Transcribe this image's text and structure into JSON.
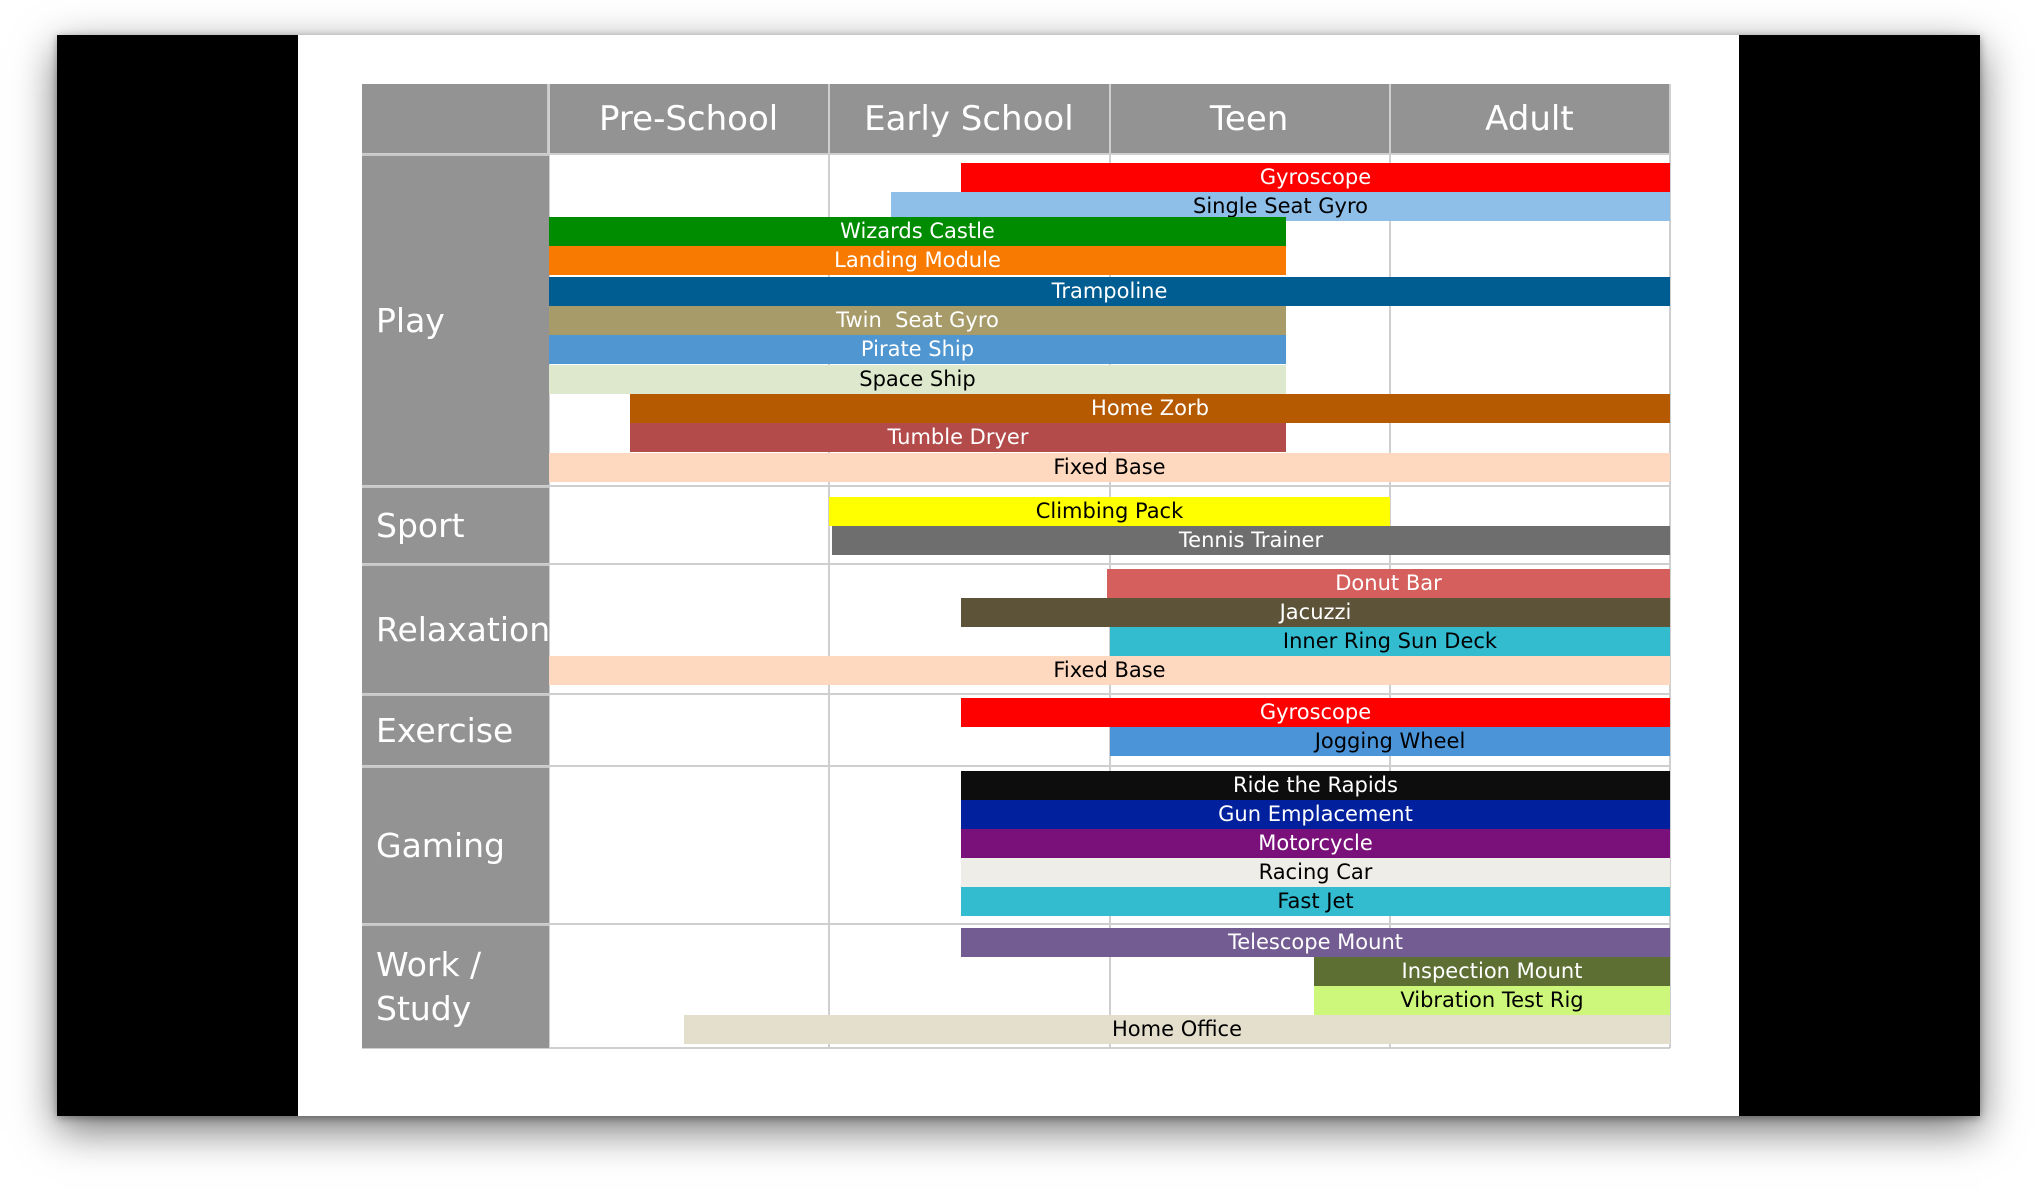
{
  "columns": [
    "Pre-School",
    "Early School",
    "Teen",
    "Adult"
  ],
  "colors": {
    "header_bg": "#939393",
    "grid_line": "#cfcfcf"
  },
  "chart_data": {
    "type": "gantt",
    "x_categories": [
      "Pre-School",
      "Early School",
      "Teen",
      "Adult"
    ],
    "groups": [
      {
        "label": "Play",
        "bars": [
          {
            "label": "Gyroscope",
            "start": 1.47,
            "end": 4.0,
            "color": "#fe0000",
            "text_color": "#ffffff"
          },
          {
            "label": "Single Seat Gyro",
            "start": 1.22,
            "end": 4.0,
            "color": "#8ebfe9",
            "text_color": "#000000"
          },
          {
            "label": "Wizards Castle",
            "start": 0.0,
            "end": 2.63,
            "color": "#008c00",
            "text_color": "#ffffff"
          },
          {
            "label": "Landing Module",
            "start": 0.0,
            "end": 2.63,
            "color": "#f97a00",
            "text_color": "#ffffff"
          },
          {
            "label": "Trampoline",
            "start": 0.0,
            "end": 4.0,
            "color": "#005d92",
            "text_color": "#ffffff"
          },
          {
            "label": "Twin  Seat Gyro",
            "start": 0.0,
            "end": 2.63,
            "color": "#a69b69",
            "text_color": "#ffffff"
          },
          {
            "label": "Pirate Ship",
            "start": 0.0,
            "end": 2.63,
            "color": "#5096d0",
            "text_color": "#ffffff"
          },
          {
            "label": "Space Ship",
            "start": 0.0,
            "end": 2.63,
            "color": "#dde8cc",
            "text_color": "#000000"
          },
          {
            "label": "Home Zorb",
            "start": 0.29,
            "end": 4.0,
            "color": "#b55a00",
            "text_color": "#ffffff"
          },
          {
            "label": "Tumble Dryer",
            "start": 0.29,
            "end": 2.63,
            "color": "#b34b4b",
            "text_color": "#ffffff"
          },
          {
            "label": "Fixed Base",
            "start": 0.0,
            "end": 4.0,
            "color": "#ffd9bf",
            "text_color": "#000000"
          }
        ]
      },
      {
        "label": "Sport",
        "bars": [
          {
            "label": "Climbing Pack",
            "start": 1.0,
            "end": 3.0,
            "color": "#ffff00",
            "text_color": "#000000"
          },
          {
            "label": "Tennis Trainer",
            "start": 1.01,
            "end": 4.0,
            "color": "#6e6e6e",
            "text_color": "#ffffff"
          }
        ]
      },
      {
        "label": "Relaxation",
        "bars": [
          {
            "label": "Donut Bar",
            "start": 1.99,
            "end": 4.0,
            "color": "#d45f5c",
            "text_color": "#ffffff"
          },
          {
            "label": "Jacuzzi",
            "start": 1.47,
            "end": 4.0,
            "color": "#5c5339",
            "text_color": "#ffffff"
          },
          {
            "label": "Inner Ring Sun Deck",
            "start": 2.0,
            "end": 4.0,
            "color": "#33bbd0",
            "text_color": "#000000"
          },
          {
            "label": "Fixed Base",
            "start": 0.0,
            "end": 4.0,
            "color": "#ffd9bf",
            "text_color": "#000000"
          }
        ]
      },
      {
        "label": "Exercise",
        "bars": [
          {
            "label": "Gyroscope",
            "start": 1.47,
            "end": 4.0,
            "color": "#fe0000",
            "text_color": "#ffffff"
          },
          {
            "label": "Jogging Wheel",
            "start": 2.0,
            "end": 4.0,
            "color": "#4c94d8",
            "text_color": "#000000"
          }
        ]
      },
      {
        "label": "Gaming",
        "bars": [
          {
            "label": "Ride the Rapids",
            "start": 1.47,
            "end": 4.0,
            "color": "#0d0d0d",
            "text_color": "#ffffff"
          },
          {
            "label": "Gun Emplacement",
            "start": 1.47,
            "end": 4.0,
            "color": "#00209e",
            "text_color": "#ffffff"
          },
          {
            "label": "Motorcycle",
            "start": 1.47,
            "end": 4.0,
            "color": "#7a117a",
            "text_color": "#ffffff"
          },
          {
            "label": "Racing Car",
            "start": 1.47,
            "end": 4.0,
            "color": "#efede7",
            "text_color": "#000000"
          },
          {
            "label": "Fast Jet",
            "start": 1.47,
            "end": 4.0,
            "color": "#33bbd0",
            "text_color": "#000000"
          }
        ]
      },
      {
        "label": "Work /\nStudy",
        "bars": [
          {
            "label": "Telescope Mount",
            "start": 1.47,
            "end": 4.0,
            "color": "#735c92",
            "text_color": "#ffffff"
          },
          {
            "label": "Inspection Mount",
            "start": 2.73,
            "end": 4.0,
            "color": "#5e6f34",
            "text_color": "#ffffff"
          },
          {
            "label": "Vibration Test Rig",
            "start": 2.73,
            "end": 4.0,
            "color": "#cdf77a",
            "text_color": "#000000"
          },
          {
            "label": "Home Office",
            "start": 0.48,
            "end": 4.0,
            "color": "#e4dfcd",
            "text_color": "#000000"
          }
        ]
      }
    ]
  }
}
